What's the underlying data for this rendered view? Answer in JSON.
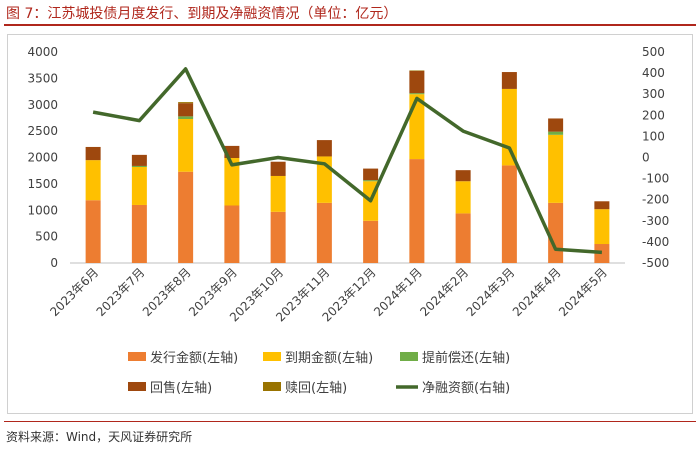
{
  "figure_title": "图 7：江苏城投债月度发行、到期及净融资情况（单位：亿元）",
  "source_note": "资料来源：Wind，天风证券研究所",
  "chart_data": {
    "type": "bar",
    "stacked": true,
    "title": "",
    "categories": [
      "2023年6月",
      "2023年7月",
      "2023年8月",
      "2023年9月",
      "2023年10月",
      "2023年11月",
      "2023年12月",
      "2024年1月",
      "2024年2月",
      "2024年3月",
      "2024年4月",
      "2024年5月"
    ],
    "series": [
      {
        "name": "发行金额(左轴)",
        "axis": "left",
        "type": "bar",
        "color": "#ED7D31",
        "values": [
          1190,
          1100,
          1730,
          1090,
          970,
          1140,
          800,
          1970,
          940,
          1850,
          1140,
          360
        ]
      },
      {
        "name": "到期金额(左轴)",
        "axis": "left",
        "type": "bar",
        "color": "#FFC000",
        "values": [
          760,
          720,
          1000,
          900,
          680,
          880,
          750,
          1230,
          610,
          1450,
          1290,
          660
        ]
      },
      {
        "name": "提前偿还(左轴)",
        "axis": "left",
        "type": "bar",
        "color": "#70AD47",
        "values": [
          0,
          20,
          50,
          0,
          0,
          0,
          20,
          20,
          0,
          0,
          60,
          0
        ]
      },
      {
        "name": "回售(左轴)",
        "axis": "left",
        "type": "bar",
        "color": "#9E480E",
        "values": [
          250,
          210,
          250,
          230,
          270,
          310,
          220,
          420,
          210,
          320,
          250,
          150
        ]
      },
      {
        "name": "赎回(左轴)",
        "axis": "left",
        "type": "bar",
        "color": "#997300",
        "values": [
          0,
          0,
          20,
          0,
          0,
          0,
          0,
          10,
          0,
          0,
          0,
          0
        ]
      },
      {
        "name": "净融资额(右轴)",
        "axis": "right",
        "type": "line",
        "color": "#43682B",
        "values": [
          215,
          175,
          420,
          -35,
          0,
          -30,
          -205,
          280,
          125,
          45,
          -435,
          -450
        ]
      }
    ],
    "y_left": {
      "min": 0,
      "max": 4000,
      "step": 500,
      "ticks": [
        "0",
        "500",
        "1000",
        "1500",
        "2000",
        "2500",
        "3000",
        "3500",
        "4000"
      ]
    },
    "y_right": {
      "min": -500,
      "max": 500,
      "step": 100,
      "ticks": [
        "-500",
        "-400",
        "-300",
        "-200",
        "-100",
        "0",
        "100",
        "200",
        "300",
        "400",
        "500"
      ]
    },
    "xlabel": "",
    "ylabel": "",
    "grid": false,
    "legend_position": "bottom"
  }
}
